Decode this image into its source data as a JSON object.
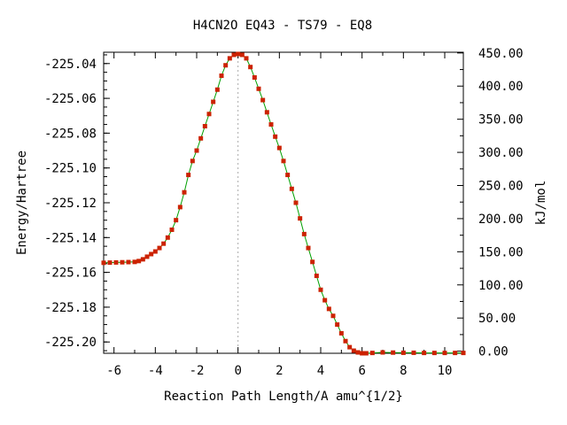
{
  "chart_data": {
    "type": "line",
    "title": "H4CN2O   EQ43 - TS79 - EQ8",
    "xlabel": "Reaction Path Length/A amu^{1/2}",
    "ylabel": "Energy/Hartree",
    "y2label": "kJ/mol",
    "xlim": [
      -6.5,
      10.9
    ],
    "ylim": [
      -225.2065,
      -225.0335
    ],
    "y2lim": [
      -3.2,
      451.1
    ],
    "x_ticks": [
      -6,
      -4,
      -2,
      0,
      2,
      4,
      6,
      8,
      10
    ],
    "x_tick_labels": [
      "-6",
      "-4",
      "-2",
      "0",
      "2",
      "4",
      "6",
      "8",
      "10"
    ],
    "y_ticks": [
      -225.04,
      -225.06,
      -225.08,
      -225.1,
      -225.12,
      -225.14,
      -225.16,
      -225.18,
      -225.2
    ],
    "y_tick_labels": [
      "-225.04",
      "-225.06",
      "-225.08",
      "-225.10",
      "-225.12",
      "-225.14",
      "-225.16",
      "-225.18",
      "-225.20"
    ],
    "y2_ticks": [
      450,
      400,
      350,
      300,
      250,
      200,
      150,
      100,
      50,
      0
    ],
    "y2_tick_labels": [
      "450.00",
      "400.00",
      "350.00",
      "300.00",
      "250.00",
      "200.00",
      "150.00",
      "100.00",
      "50.00",
      "0.00"
    ],
    "ts_marker_x": 0,
    "grid": false,
    "colors": {
      "line": "#00a000",
      "marker": "#cc2200",
      "ts_line": "#aaaaaa"
    },
    "series": [
      {
        "x": [
          -6.5,
          -6.2,
          -5.9,
          -5.6,
          -5.3,
          -5.0,
          -4.8,
          -4.6,
          -4.4,
          -4.2,
          -4.0,
          -3.8,
          -3.6,
          -3.4,
          -3.2,
          -3.0,
          -2.8,
          -2.6,
          -2.4,
          -2.2,
          -2.0,
          -1.8,
          -1.6,
          -1.4,
          -1.2,
          -1.0,
          -0.8,
          -0.6,
          -0.4,
          -0.2,
          0.0,
          0.2,
          0.4,
          0.6,
          0.8,
          1.0,
          1.2,
          1.4,
          1.6,
          1.8,
          2.0,
          2.2,
          2.4,
          2.6,
          2.8,
          3.0,
          3.2,
          3.4,
          3.6,
          3.8,
          4.0,
          4.2,
          4.4,
          4.6,
          4.8,
          5.0,
          5.2,
          5.4,
          5.6,
          5.8,
          6.0,
          6.2,
          6.5,
          7.0,
          7.5,
          8.0,
          8.5,
          9.0,
          9.5,
          10.0,
          10.5,
          10.9
        ],
        "values": [
          -225.1545,
          -225.1544,
          -225.1543,
          -225.1542,
          -225.1541,
          -225.154,
          -225.1535,
          -225.1525,
          -225.151,
          -225.1495,
          -225.148,
          -225.146,
          -225.1435,
          -225.14,
          -225.1355,
          -225.13,
          -225.1225,
          -225.114,
          -225.104,
          -225.096,
          -225.09,
          -225.083,
          -225.076,
          -225.069,
          -225.062,
          -225.055,
          -225.047,
          -225.041,
          -225.037,
          -225.035,
          -225.0345,
          -225.035,
          -225.037,
          -225.042,
          -225.048,
          -225.0545,
          -225.061,
          -225.068,
          -225.075,
          -225.082,
          -225.0885,
          -225.096,
          -225.104,
          -225.112,
          -225.12,
          -225.129,
          -225.138,
          -225.146,
          -225.154,
          -225.162,
          -225.17,
          -225.176,
          -225.181,
          -225.185,
          -225.19,
          -225.195,
          -225.1995,
          -225.203,
          -225.205,
          -225.206,
          -225.2065,
          -225.2065,
          -225.2063,
          -225.206,
          -225.2061,
          -225.2062,
          -225.2062,
          -225.2063,
          -225.2063,
          -225.2063,
          -225.2063,
          -225.2063
        ]
      }
    ]
  }
}
